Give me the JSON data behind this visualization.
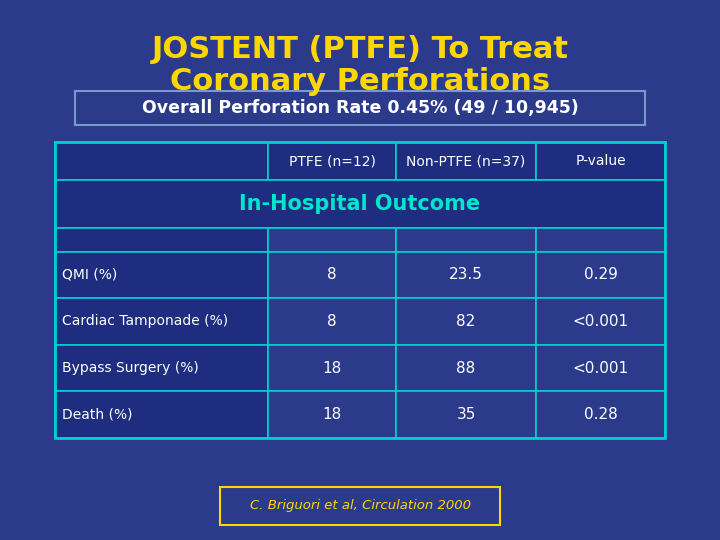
{
  "title_line1": "JOSTENT (PTFE) To Treat",
  "title_line2": "Coronary Perforations",
  "title_color": "#FFD700",
  "bg_color": "#2B3A8B",
  "subtitle": "Overall Perforation Rate 0.45% (49 / 10,945)",
  "subtitle_color": "#FFFFFF",
  "subtitle_border": "#7799CC",
  "col_headers": [
    "PTFE (n=12)",
    "Non-PTFE (n=37)",
    "P-value"
  ],
  "section_header": "In-Hospital Outcome",
  "section_header_color": "#00E5CC",
  "row_labels": [
    "QMI (%)",
    "Cardiac Tamponade (%)",
    "Bypass Surgery (%)",
    "Death (%)"
  ],
  "col1_values": [
    "8",
    "8",
    "18",
    "18"
  ],
  "col2_values": [
    "23.5",
    "82",
    "88",
    "35"
  ],
  "col3_values": [
    "0.29",
    "<0.001",
    "<0.001",
    "0.28"
  ],
  "table_border": "#00CFCF",
  "row_label_bg": "#1E2D80",
  "cell_bg": "#2B3A8B",
  "header_bg": "#1E2D80",
  "text_color": "#FFFFFF",
  "citation": "C. Briguori et al, Circulation 2000",
  "citation_border": "#FFD700",
  "citation_color": "#FFD700"
}
